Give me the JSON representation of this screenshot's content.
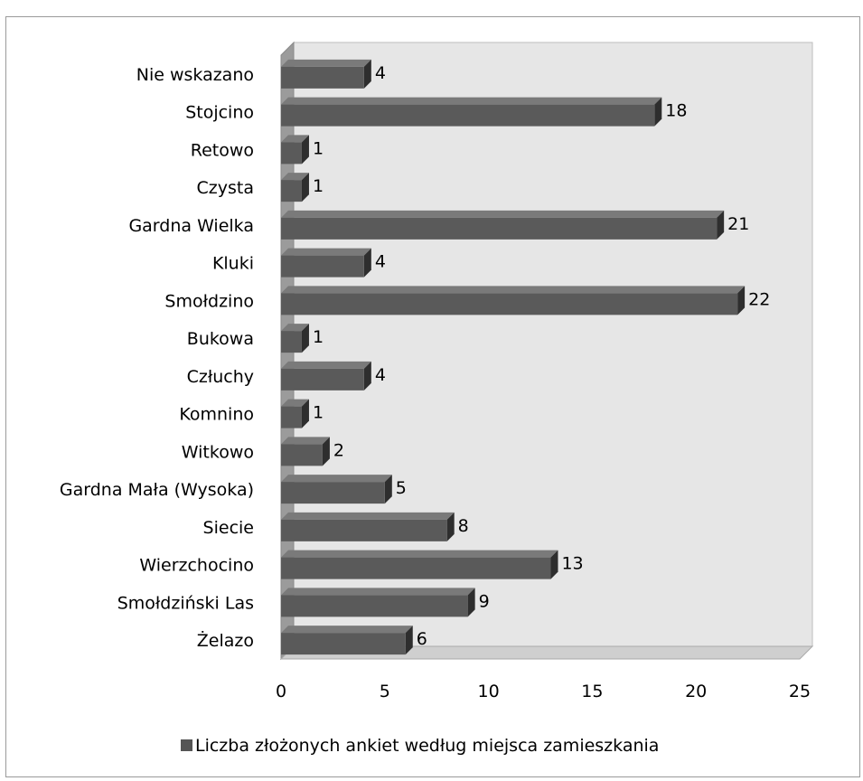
{
  "header_fragment": "",
  "chart_data": {
    "type": "bar",
    "orientation": "horizontal",
    "style": "3d",
    "categories": [
      "Nie wskazano",
      "Stojcino",
      "Retowo",
      "Czysta",
      "Gardna Wielka",
      "Kluki",
      "Smołdzino",
      "Bukowa",
      "Człuchy",
      "Komnino",
      "Witkowo",
      "Gardna Mała (Wysoka)",
      "Siecie",
      "Wierzchocino",
      "Smołdziński Las",
      "Żelazo"
    ],
    "series": [
      {
        "name": "Liczba złożonych ankiet według miejsca zamieszkania",
        "values": [
          4,
          18,
          1,
          1,
          21,
          4,
          22,
          1,
          4,
          1,
          2,
          5,
          8,
          13,
          9,
          6
        ]
      }
    ],
    "data_labels": [
      "4",
      "18",
      "1",
      "1",
      "21",
      "4",
      "22",
      "1",
      "4",
      "1",
      "2",
      "5",
      "8",
      "13",
      "9",
      "6"
    ],
    "xlim": [
      0,
      25
    ],
    "x_ticks": [
      "0",
      "5",
      "10",
      "15",
      "20",
      "25"
    ],
    "grid": false,
    "legend_position": "bottom",
    "colors": {
      "bar": "#5a5a5a",
      "bar_top": "#7a7a7a",
      "bar_end": "#2e2e2e",
      "wall": "#e6e6e6",
      "floor": "#cfcfcf",
      "legend_swatch": "#555555"
    }
  }
}
